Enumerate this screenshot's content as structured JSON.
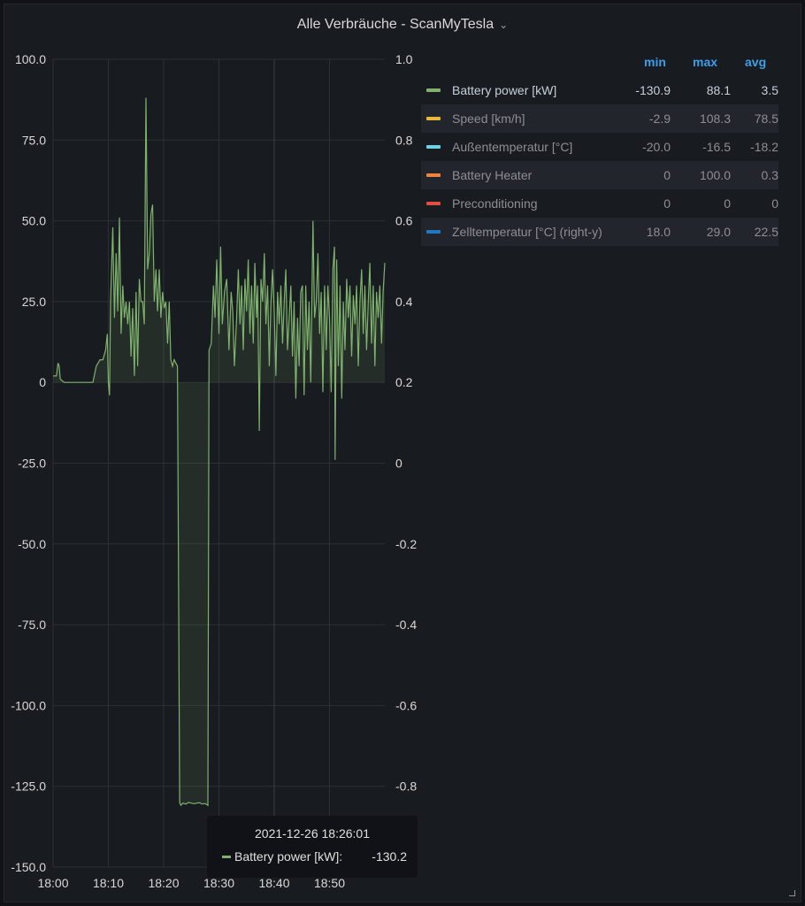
{
  "panel": {
    "title": "Alle Verbräuche - ScanMyTesla",
    "title_menu_icon": "chevron-down-icon"
  },
  "legend": {
    "columns": [
      "min",
      "max",
      "avg"
    ],
    "items": [
      {
        "name": "Battery power [kW]",
        "color": "#7eb26d",
        "min": "-130.9",
        "max": "88.1",
        "avg": "3.5",
        "active": true
      },
      {
        "name": "Speed [km/h]",
        "color": "#eab839",
        "min": "-2.9",
        "max": "108.3",
        "avg": "78.5",
        "active": false
      },
      {
        "name": "Außentemperatur [°C]",
        "color": "#6ed0e0",
        "min": "-20.0",
        "max": "-16.5",
        "avg": "-18.2",
        "active": false
      },
      {
        "name": "Battery Heater",
        "color": "#ef843c",
        "min": "0",
        "max": "100.0",
        "avg": "0.3",
        "active": false
      },
      {
        "name": "Preconditioning",
        "color": "#e24d42",
        "min": "0",
        "max": "0",
        "avg": "0",
        "active": false
      },
      {
        "name": "Zelltemperatur [°C]  (right-y)",
        "color": "#1f78c1",
        "min": "18.0",
        "max": "29.0",
        "avg": "22.5",
        "active": false
      }
    ]
  },
  "tooltip": {
    "time": "2021-12-26 18:26:01",
    "label": "Battery power [kW]:",
    "value": "-130.2",
    "color": "#7eb26d"
  },
  "chart_data": {
    "type": "line",
    "title": "Alle Verbräuche - ScanMyTesla",
    "xlim_minutes": [
      0,
      60
    ],
    "x_ticks": [
      "18:00",
      "18:10",
      "18:20",
      "18:30",
      "18:40",
      "18:50"
    ],
    "x_tick_minutes": [
      0,
      10,
      20,
      30,
      40,
      50
    ],
    "ylim_left": [
      -150,
      100
    ],
    "y_ticks_left": [
      "100.0",
      "75.0",
      "50.0",
      "25.0",
      "0",
      "-25.0",
      "-50.0",
      "-75.0",
      "-100.0",
      "-125.0",
      "-150.0"
    ],
    "y_tick_values_left": [
      100,
      75,
      50,
      25,
      0,
      -25,
      -50,
      -75,
      -100,
      -125,
      -150
    ],
    "ylim_right": [
      -1.0,
      1.0
    ],
    "y_ticks_right": [
      "1.0",
      "0.8",
      "0.6",
      "0.4",
      "0.2",
      "0",
      "-0.2",
      "-0.4",
      "-0.6",
      "-0.8"
    ],
    "y_tick_values_right": [
      1.0,
      0.8,
      0.6,
      0.4,
      0.2,
      0,
      -0.2,
      -0.4,
      -0.6,
      -0.8
    ],
    "grid": true,
    "series": [
      {
        "name": "Battery power [kW]",
        "color": "#7eb26d",
        "fill": true,
        "points": [
          [
            0,
            2
          ],
          [
            0.6,
            2
          ],
          [
            0.9,
            6
          ],
          [
            1.1,
            5
          ],
          [
            1.3,
            1
          ],
          [
            2,
            0
          ],
          [
            4,
            0
          ],
          [
            6,
            0
          ],
          [
            7.2,
            0
          ],
          [
            7.8,
            5
          ],
          [
            8.5,
            7
          ],
          [
            9,
            7
          ],
          [
            9.5,
            10
          ],
          [
            9.8,
            15
          ],
          [
            10.0,
            0
          ],
          [
            10.2,
            -4
          ],
          [
            10.4,
            25
          ],
          [
            10.8,
            48
          ],
          [
            11.1,
            20
          ],
          [
            11.4,
            40
          ],
          [
            11.7,
            22
          ],
          [
            12.0,
            51
          ],
          [
            12.3,
            15
          ],
          [
            12.6,
            30
          ],
          [
            12.9,
            20
          ],
          [
            13.2,
            25
          ],
          [
            13.5,
            18
          ],
          [
            13.8,
            25
          ],
          [
            14.1,
            8
          ],
          [
            14.4,
            23
          ],
          [
            14.7,
            2
          ],
          [
            15.0,
            28
          ],
          [
            15.3,
            5
          ],
          [
            15.6,
            32
          ],
          [
            15.9,
            25
          ],
          [
            16.2,
            25
          ],
          [
            16.5,
            18
          ],
          [
            16.8,
            88.1
          ],
          [
            17.1,
            35
          ],
          [
            17.4,
            40
          ],
          [
            17.7,
            52
          ],
          [
            18.0,
            55
          ],
          [
            18.3,
            25
          ],
          [
            18.6,
            35
          ],
          [
            18.9,
            22
          ],
          [
            19.2,
            35
          ],
          [
            19.5,
            20
          ],
          [
            19.8,
            28
          ],
          [
            20.1,
            23
          ],
          [
            20.4,
            25
          ],
          [
            20.7,
            12
          ],
          [
            21.0,
            25
          ],
          [
            21.3,
            7
          ],
          [
            21.6,
            5
          ],
          [
            21.9,
            7
          ],
          [
            22.2,
            6
          ],
          [
            22.5,
            5
          ],
          [
            22.9,
            -130
          ],
          [
            23.1,
            -130.9
          ],
          [
            23.5,
            -130.2
          ],
          [
            24.0,
            -130.5
          ],
          [
            24.5,
            -130
          ],
          [
            25.0,
            -130.2
          ],
          [
            25.5,
            -130.4
          ],
          [
            26.0,
            -130.2
          ],
          [
            26.5,
            -130.1
          ],
          [
            27.0,
            -130.5
          ],
          [
            27.5,
            -130.3
          ],
          [
            28.0,
            -130.9
          ],
          [
            28.2,
            10
          ],
          [
            28.6,
            12
          ],
          [
            29.0,
            30
          ],
          [
            29.3,
            20
          ],
          [
            29.6,
            38
          ],
          [
            30.0,
            15
          ],
          [
            30.3,
            42
          ],
          [
            30.6,
            18
          ],
          [
            31.0,
            28
          ],
          [
            31.4,
            32
          ],
          [
            31.8,
            10
          ],
          [
            32.2,
            28
          ],
          [
            32.5,
            22
          ],
          [
            32.8,
            5
          ],
          [
            33.2,
            20
          ],
          [
            33.5,
            35
          ],
          [
            33.8,
            18
          ],
          [
            34.1,
            30
          ],
          [
            34.4,
            10
          ],
          [
            34.7,
            32
          ],
          [
            35.0,
            22
          ],
          [
            35.3,
            38
          ],
          [
            35.6,
            15
          ],
          [
            35.9,
            30
          ],
          [
            36.2,
            12
          ],
          [
            36.5,
            37
          ],
          [
            36.8,
            20
          ],
          [
            37.0,
            30
          ],
          [
            37.3,
            -15
          ],
          [
            37.6,
            32
          ],
          [
            37.9,
            25
          ],
          [
            38.2,
            40
          ],
          [
            38.5,
            18
          ],
          [
            38.8,
            30
          ],
          [
            39.1,
            5
          ],
          [
            39.4,
            25
          ],
          [
            39.7,
            35
          ],
          [
            40.0,
            22
          ],
          [
            40.3,
            2
          ],
          [
            40.6,
            28
          ],
          [
            40.9,
            18
          ],
          [
            41.2,
            30
          ],
          [
            41.5,
            12
          ],
          [
            41.8,
            25
          ],
          [
            42.1,
            35
          ],
          [
            42.4,
            10
          ],
          [
            42.7,
            20
          ],
          [
            43.0,
            30
          ],
          [
            43.3,
            8
          ],
          [
            43.6,
            25
          ],
          [
            43.9,
            -5
          ],
          [
            44.2,
            20
          ],
          [
            44.5,
            5
          ],
          [
            44.8,
            28
          ],
          [
            45.1,
            30
          ],
          [
            45.4,
            -4
          ],
          [
            45.7,
            30
          ],
          [
            46.0,
            10
          ],
          [
            46.3,
            25
          ],
          [
            46.6,
            0
          ],
          [
            47.0,
            50
          ],
          [
            47.3,
            20
          ],
          [
            47.6,
            25
          ],
          [
            47.9,
            40
          ],
          [
            48.2,
            15
          ],
          [
            48.5,
            28
          ],
          [
            48.8,
            -3
          ],
          [
            49.1,
            30
          ],
          [
            49.4,
            10
          ],
          [
            49.7,
            30
          ],
          [
            50.0,
            20
          ],
          [
            50.3,
            -3
          ],
          [
            50.6,
            35
          ],
          [
            50.9,
            42
          ],
          [
            51.0,
            -24
          ],
          [
            51.3,
            38
          ],
          [
            51.6,
            5
          ],
          [
            51.9,
            30
          ],
          [
            52.2,
            -5
          ],
          [
            52.5,
            25
          ],
          [
            52.8,
            10
          ],
          [
            53.1,
            32
          ],
          [
            53.4,
            20
          ],
          [
            53.7,
            30
          ],
          [
            54.0,
            8
          ],
          [
            54.3,
            27
          ],
          [
            54.6,
            18
          ],
          [
            54.9,
            30
          ],
          [
            55.2,
            5
          ],
          [
            55.5,
            25
          ],
          [
            55.8,
            35
          ],
          [
            56.1,
            15
          ],
          [
            56.4,
            30
          ],
          [
            56.7,
            10
          ],
          [
            57.0,
            25
          ],
          [
            57.3,
            37
          ],
          [
            57.6,
            12
          ],
          [
            57.9,
            30
          ],
          [
            58.2,
            5
          ],
          [
            58.5,
            28
          ],
          [
            58.8,
            20
          ],
          [
            59.1,
            30
          ],
          [
            59.4,
            12
          ],
          [
            59.7,
            28
          ],
          [
            60.0,
            37
          ]
        ]
      }
    ]
  }
}
